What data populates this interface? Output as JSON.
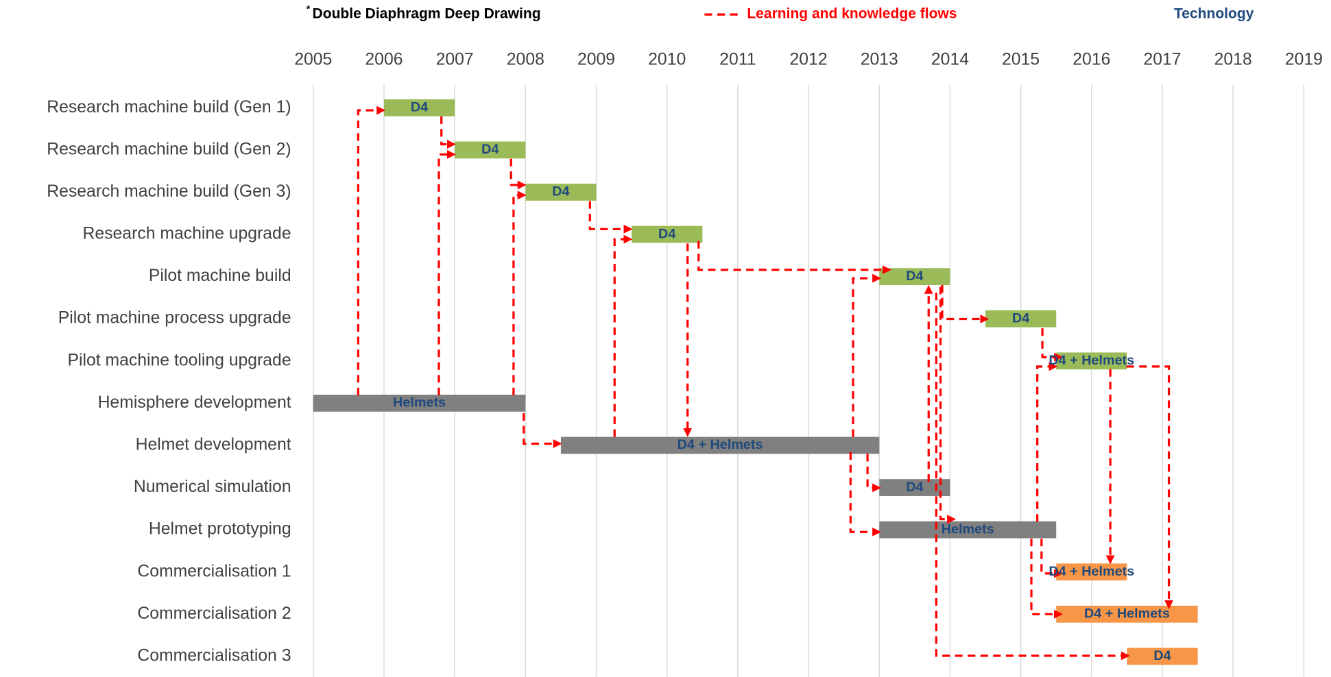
{
  "chart_data": {
    "type": "gantt",
    "legend": {
      "note_marker": "*",
      "note": "Double Diaphragm Deep Drawing",
      "flows": "Learning and knowledge flows",
      "flows_color": "#ff0000",
      "technology": "Technology",
      "technology_color": "#1f497d"
    },
    "xlim": [
      2005,
      2019
    ],
    "xticks": [
      2005,
      2006,
      2007,
      2008,
      2009,
      2010,
      2011,
      2012,
      2013,
      2014,
      2015,
      2016,
      2017,
      2018,
      2019
    ],
    "grid": true,
    "tasks": [
      {
        "name": "Research machine build (Gen 1)",
        "start": 2006,
        "end": 2007,
        "label": "D4",
        "color": "#9bbb59"
      },
      {
        "name": "Research machine build (Gen 2)",
        "start": 2007,
        "end": 2008,
        "label": "D4",
        "color": "#9bbb59"
      },
      {
        "name": "Research machine build (Gen 3)",
        "start": 2008,
        "end": 2009,
        "label": "D4",
        "color": "#9bbb59"
      },
      {
        "name": "Research machine upgrade",
        "start": 2009.5,
        "end": 2010.5,
        "label": "D4",
        "color": "#9bbb59"
      },
      {
        "name": "Pilot machine build",
        "start": 2013,
        "end": 2014,
        "label": "D4",
        "color": "#9bbb59"
      },
      {
        "name": "Pilot machine process upgrade",
        "start": 2014.5,
        "end": 2015.5,
        "label": "D4",
        "color": "#9bbb59"
      },
      {
        "name": "Pilot machine tooling upgrade",
        "start": 2015.5,
        "end": 2016.5,
        "label": "D4 + Helmets",
        "color": "#9bbb59"
      },
      {
        "name": "Hemisphere development",
        "start": 2005,
        "end": 2008,
        "label": "Helmets",
        "color": "#808080"
      },
      {
        "name": "Helmet development",
        "start": 2008.5,
        "end": 2013,
        "label": "D4 + Helmets",
        "color": "#808080"
      },
      {
        "name": "Numerical simulation",
        "start": 2013,
        "end": 2014,
        "label": "D4",
        "color": "#808080"
      },
      {
        "name": "Helmet prototyping",
        "start": 2013,
        "end": 2015.5,
        "label": "Helmets",
        "color": "#808080"
      },
      {
        "name": "Commercialisation 1",
        "start": 2015.5,
        "end": 2016.5,
        "label": "D4 + Helmets",
        "color": "#f79646"
      },
      {
        "name": "Commercialisation 2",
        "start": 2015.5,
        "end": 2017.5,
        "label": "D4 + Helmets",
        "color": "#f79646"
      },
      {
        "name": "Commercialisation 3",
        "start": 2016.5,
        "end": 2017.5,
        "label": "D4",
        "color": "#f79646"
      }
    ]
  }
}
